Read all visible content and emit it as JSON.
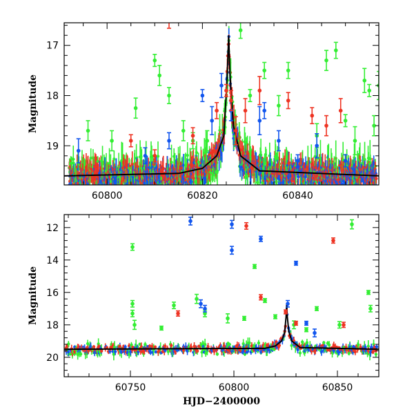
{
  "chart_data": [
    {
      "type": "scatter",
      "panel": "top",
      "xlabel": "",
      "ylabel": "Magnitude",
      "xlim": [
        60791,
        60857
      ],
      "ylim": [
        19.78,
        16.55
      ],
      "y_inverted": true,
      "x_ticks": [
        60800,
        60820,
        60840
      ],
      "y_ticks": [
        17,
        18,
        19
      ],
      "grid": false,
      "colors": {
        "green": "#33ee33",
        "blue": "#1155ee",
        "red": "#ee3322",
        "model": "#000000"
      },
      "model_curve": {
        "baseline": 19.6,
        "peak_x": 60825.5,
        "peak_y": 16.8,
        "x": [
          60791,
          60815,
          60820,
          60823,
          60824.5,
          60825.2,
          60825.5,
          60825.8,
          60826.5,
          60828,
          60832,
          60857
        ],
        "y": [
          19.6,
          19.55,
          19.45,
          19.2,
          18.8,
          17.6,
          16.8,
          17.6,
          18.6,
          19.2,
          19.5,
          19.6
        ]
      },
      "series": [
        {
          "name": "green",
          "points": [
            [
              60796,
              18.7
            ],
            [
              60801,
              18.9
            ],
            [
              60806,
              18.25
            ],
            [
              60810,
              17.3
            ],
            [
              60811,
              17.6
            ],
            [
              60813,
              18.0
            ],
            [
              60816,
              18.7
            ],
            [
              60818,
              18.9
            ],
            [
              60821,
              18.9
            ],
            [
              60828,
              16.7
            ],
            [
              60830,
              18.0
            ],
            [
              60833,
              17.5
            ],
            [
              60836,
              18.2
            ],
            [
              60838,
              17.5
            ],
            [
              60844,
              18.8
            ],
            [
              60846,
              17.3
            ],
            [
              60848,
              17.1
            ],
            [
              60850,
              18.5
            ],
            [
              60852,
              18.9
            ],
            [
              60854,
              17.7
            ],
            [
              60855,
              17.9
            ],
            [
              60856,
              18.6
            ],
            [
              60857,
              17.8
            ]
          ]
        },
        {
          "name": "blue",
          "points": [
            [
              60794,
              19.1
            ],
            [
              60808,
              19.2
            ],
            [
              60813,
              18.9
            ],
            [
              60820,
              18.0
            ],
            [
              60822,
              18.5
            ],
            [
              60824,
              17.8
            ],
            [
              60826,
              18.3
            ],
            [
              60832,
              18.5
            ],
            [
              60833,
              18.3
            ],
            [
              60836,
              18.9
            ],
            [
              60840,
              19.3
            ],
            [
              60844,
              19.0
            ],
            [
              60850,
              19.3
            ]
          ]
        },
        {
          "name": "red",
          "points": [
            [
              60805,
              18.9
            ],
            [
              60810,
              19.2
            ],
            [
              60813,
              16.5
            ],
            [
              60818,
              18.8
            ],
            [
              60823,
              18.3
            ],
            [
              60825,
              17.9
            ],
            [
              60826,
              18.1
            ],
            [
              60827,
              18.7
            ],
            [
              60829,
              18.3
            ],
            [
              60832,
              17.9
            ],
            [
              60838,
              18.1
            ],
            [
              60843,
              18.4
            ],
            [
              60846,
              18.6
            ],
            [
              60849,
              18.3
            ]
          ]
        }
      ]
    },
    {
      "type": "scatter",
      "panel": "bottom",
      "xlabel": "HJD−2400000",
      "ylabel": "Magnitude",
      "xlim": [
        60718,
        60870
      ],
      "ylim": [
        21.2,
        11.2
      ],
      "y_inverted": true,
      "x_ticks": [
        60750,
        60800,
        60850
      ],
      "y_ticks": [
        12,
        14,
        16,
        18,
        20
      ],
      "grid": false,
      "colors": {
        "green": "#33ee33",
        "blue": "#1155ee",
        "red": "#ee3322",
        "model": "#000000"
      },
      "model_curve": {
        "baseline": 19.5,
        "peak_x": 60825.5,
        "peak_y": 16.7,
        "x": [
          60718,
          60815,
          60820,
          60823,
          60824.5,
          60825.2,
          60825.5,
          60825.8,
          60826.5,
          60828,
          60832,
          60870
        ],
        "y": [
          19.5,
          19.45,
          19.3,
          19.0,
          18.5,
          17.5,
          16.7,
          17.5,
          18.4,
          19.0,
          19.4,
          19.5
        ]
      },
      "series": [
        {
          "name": "green",
          "points": [
            [
              60751,
              13.2
            ],
            [
              60751,
              16.7
            ],
            [
              60751,
              17.3
            ],
            [
              60752,
              18.0
            ],
            [
              60765,
              18.2
            ],
            [
              60771,
              16.8
            ],
            [
              60782,
              16.4
            ],
            [
              60786,
              17.3
            ],
            [
              60797,
              17.6
            ],
            [
              60805,
              17.6
            ],
            [
              60810,
              14.4
            ],
            [
              60815,
              16.5
            ],
            [
              60820,
              17.5
            ],
            [
              60829,
              18.0
            ],
            [
              60835,
              18.3
            ],
            [
              60840,
              17.0
            ],
            [
              60851,
              18.0
            ],
            [
              60857,
              11.8
            ],
            [
              60865,
              16.0
            ],
            [
              60866,
              17.0
            ]
          ]
        },
        {
          "name": "blue",
          "points": [
            [
              60779,
              11.6
            ],
            [
              60784,
              16.7
            ],
            [
              60786,
              17.0
            ],
            [
              60799,
              11.8
            ],
            [
              60799,
              13.4
            ],
            [
              60813,
              12.7
            ],
            [
              60826,
              16.7
            ],
            [
              60830,
              14.2
            ],
            [
              60835,
              17.9
            ],
            [
              60839,
              18.5
            ]
          ]
        },
        {
          "name": "red",
          "points": [
            [
              60773,
              17.3
            ],
            [
              60806,
              11.9
            ],
            [
              60813,
              16.3
            ],
            [
              60825,
              17.2
            ],
            [
              60830,
              17.9
            ],
            [
              60848,
              12.8
            ],
            [
              60853,
              18.0
            ]
          ]
        }
      ]
    }
  ]
}
